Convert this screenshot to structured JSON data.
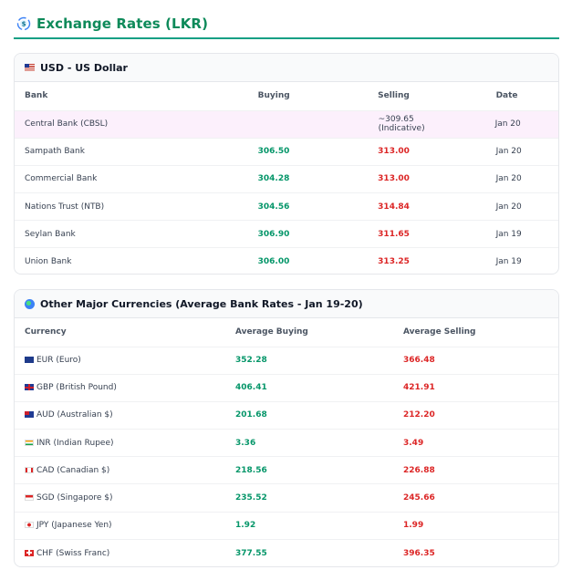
{
  "header": {
    "title": "Exchange Rates (LKR)",
    "icon": "currency-exchange-icon"
  },
  "usd": {
    "title": "USD - US Dollar",
    "icon": "us-flag-icon",
    "columns": [
      "Bank",
      "Buying",
      "Selling",
      "Date"
    ],
    "central_row": {
      "bank": "Central Bank (CBSL)",
      "rate": "~309.65 (Indicative)",
      "date": "Jan 20"
    },
    "rows": [
      {
        "bank": "Sampath Bank",
        "buying": "306.50",
        "selling": "313.00",
        "date": "Jan 20"
      },
      {
        "bank": "Commercial Bank",
        "buying": "304.28",
        "selling": "313.00",
        "date": "Jan 20"
      },
      {
        "bank": "Nations Trust (NTB)",
        "buying": "304.56",
        "selling": "314.84",
        "date": "Jan 20"
      },
      {
        "bank": "Seylan Bank",
        "buying": "306.90",
        "selling": "311.65",
        "date": "Jan 19"
      },
      {
        "bank": "Union Bank",
        "buying": "306.00",
        "selling": "313.25",
        "date": "Jan 19"
      }
    ]
  },
  "other": {
    "title": "Other Major Currencies (Average Bank Rates - Jan 19-20)",
    "icon": "globe-icon",
    "columns": [
      "Currency",
      "Average Buying",
      "Average Selling"
    ],
    "rows": [
      {
        "flag": "eur",
        "currency": "EUR (Euro)",
        "buying": "352.28",
        "selling": "366.48"
      },
      {
        "flag": "gbp",
        "currency": "GBP (British Pound)",
        "buying": "406.41",
        "selling": "421.91"
      },
      {
        "flag": "aud",
        "currency": "AUD (Australian $)",
        "buying": "201.68",
        "selling": "212.20"
      },
      {
        "flag": "inr",
        "currency": "INR (Indian Rupee)",
        "buying": "3.36",
        "selling": "3.49"
      },
      {
        "flag": "cad",
        "currency": "CAD (Canadian $)",
        "buying": "218.56",
        "selling": "226.88"
      },
      {
        "flag": "sgd",
        "currency": "SGD (Singapore $)",
        "buying": "235.52",
        "selling": "245.66"
      },
      {
        "flag": "jpy",
        "currency": "JPY (Japanese Yen)",
        "buying": "1.92",
        "selling": "1.99"
      },
      {
        "flag": "chf",
        "currency": "CHF (Swiss Franc)",
        "buying": "377.55",
        "selling": "396.35"
      }
    ]
  }
}
